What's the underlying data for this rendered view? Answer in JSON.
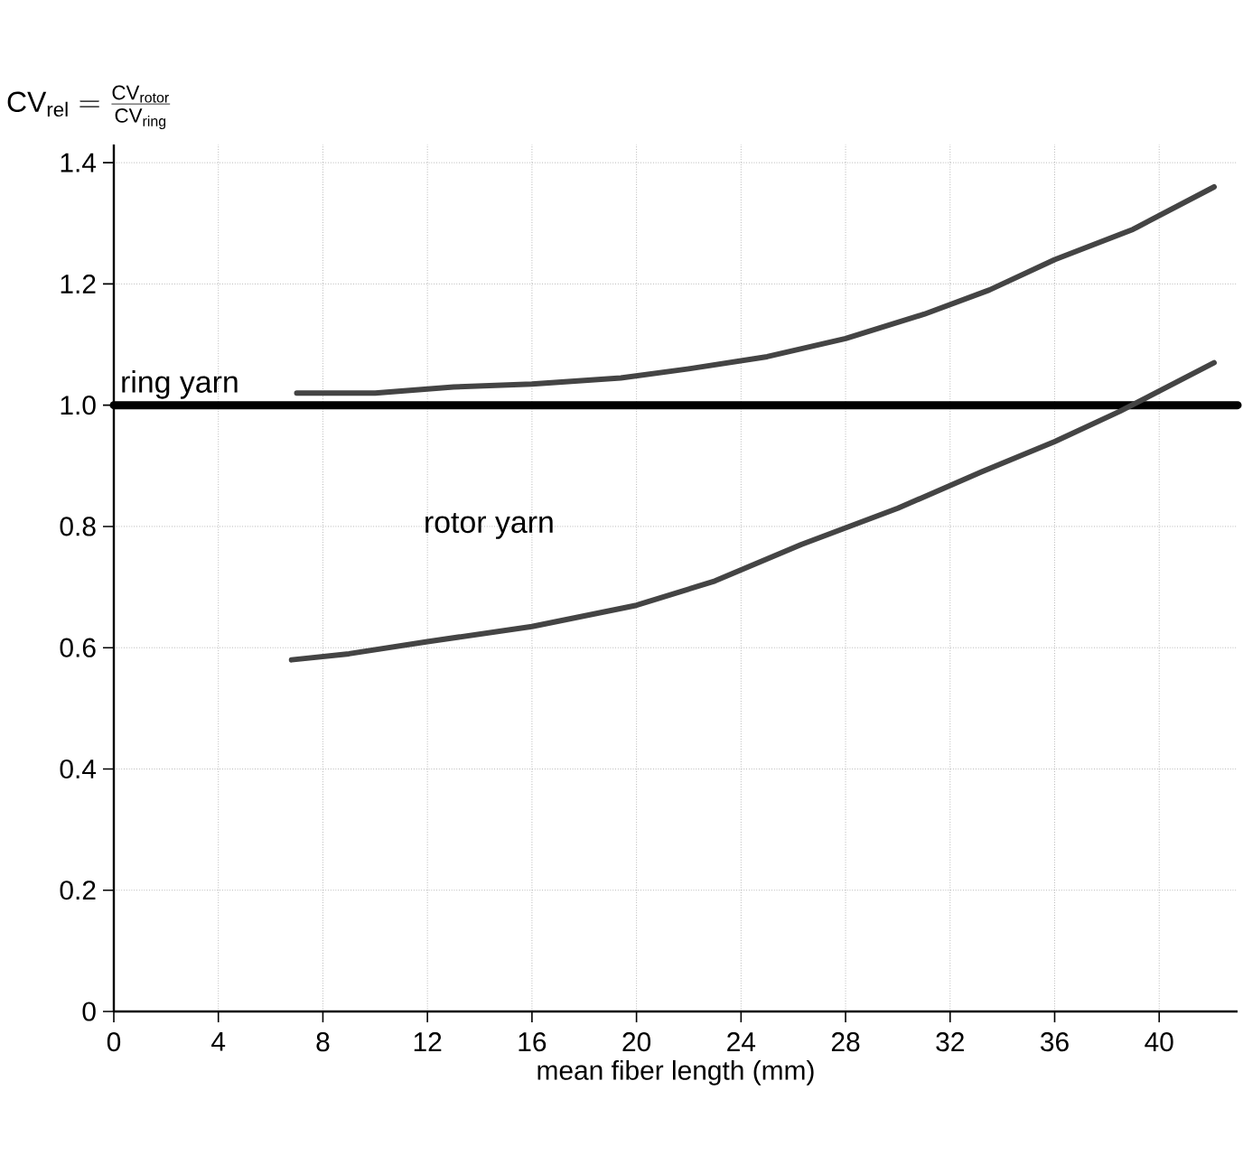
{
  "chart_data": {
    "type": "line",
    "ylabel": "\\mathrm{CV}_{\\mathrm{rel}} = \\frac{\\mathrm{CV}_{\\mathrm{rotor}}}{\\mathrm{CV}_{\\mathrm{ring}}}",
    "xlabel": "mean fiber length (mm)",
    "series": [
      {
        "name": "ring yarn",
        "color": "#000000",
        "x": [
          0,
          43
        ],
        "values": [
          1.0,
          1.0
        ]
      },
      {
        "color": "#444444",
        "x": [
          7,
          10,
          13,
          16,
          19.4,
          22,
          25,
          28,
          31,
          33.5,
          36,
          39,
          42.1
        ],
        "values": [
          1.02,
          1.02,
          1.03,
          1.035,
          1.045,
          1.06,
          1.08,
          1.11,
          1.15,
          1.19,
          1.24,
          1.29,
          1.36
        ]
      },
      {
        "color": "#444444",
        "x": [
          6.8,
          9,
          12,
          16,
          20,
          23,
          26.3,
          30,
          33.2,
          36,
          38.5,
          42.1
        ],
        "values": [
          0.58,
          0.59,
          0.61,
          0.635,
          0.67,
          0.71,
          0.77,
          0.83,
          0.89,
          0.94,
          0.99,
          1.07
        ]
      }
    ],
    "annotations": [
      "rotor yarn"
    ],
    "xlim": [
      0,
      43
    ],
    "ylim": [
      0,
      1.43
    ],
    "xticks": [
      0,
      4,
      8,
      12,
      16,
      20,
      24,
      28,
      32,
      36,
      40
    ],
    "yticks": [
      {
        "value": 0,
        "label": "0"
      },
      {
        "value": 0.2,
        "label": "0.2"
      },
      {
        "value": 0.4,
        "label": "0.4"
      },
      {
        "value": 0.6,
        "label": "0.6"
      },
      {
        "value": 0.8,
        "label": "0.8"
      },
      {
        "value": 1,
        "label": "1.0"
      },
      {
        "value": 1.2,
        "label": "1.2"
      },
      {
        "value": 1.4,
        "label": "1.4"
      }
    ],
    "grid": true,
    "marker": "none",
    "line_style": "solid"
  }
}
